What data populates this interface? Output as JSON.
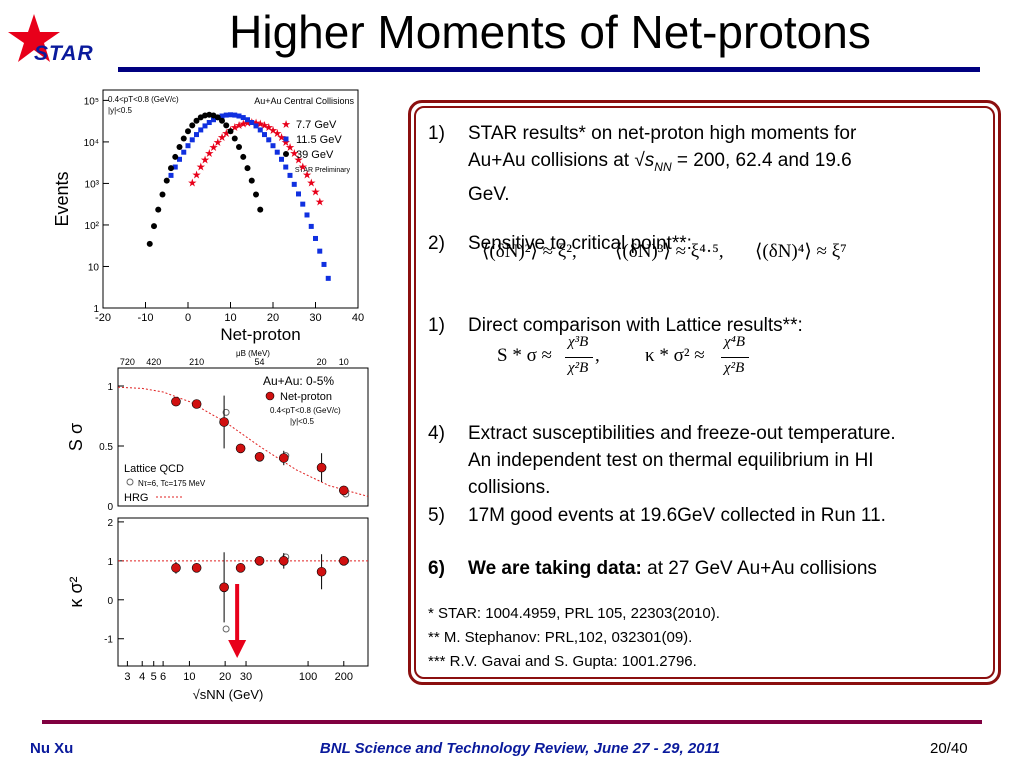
{
  "slide": {
    "title": "Higher Moments of Net-protons",
    "logo_text": "STAR",
    "accent_color": "#000080",
    "panel_border_color": "#8b0f0f"
  },
  "items": [
    {
      "num": "1)",
      "text_a": "STAR results* on net-proton high moments for",
      "text_b_pre": "Au+Au collisions at √",
      "text_b_s": "s",
      "text_b_sub": "NN",
      "text_b_post": " = 200, 62.4 and 19.6",
      "text_c": "GeV."
    },
    {
      "num": "2)",
      "text": "Sensitive to critical point**:"
    },
    {
      "num": "1)",
      "text": "Direct comparison with Lattice results**:"
    },
    {
      "num": "4)",
      "lines": [
        "Extract susceptibilities and freeze-out temperature.",
        "An independent test on thermal equilibrium in HI",
        "collisions."
      ]
    },
    {
      "num": "5)",
      "text": "17M good events at 19.6GeV collected in Run 11."
    },
    {
      "num": "6)",
      "bold": "We are taking data:",
      "text": " at 27 GeV Au+Au collisions"
    }
  ],
  "formulas": {
    "critical": [
      "⟨(δN)²⟩ ≈ ξ²,",
      "⟨(δN)³⟩ ≈ ξ⁴·⁵,",
      "⟨(δN)⁴⟩ ≈ ξ⁷"
    ],
    "lattice_s_lhs": "S * σ ≈",
    "lattice_s_num": "χ³B",
    "lattice_s_den": "χ²B",
    "lattice_s_tail": ",",
    "lattice_k_lhs": "κ * σ² ≈",
    "lattice_k_num": "χ⁴B",
    "lattice_k_den": "χ²B"
  },
  "notes": [
    "*   STAR: 1004.4959,  PRL 105, 22303(2010).",
    "**  M. Stephanov: PRL,102, 032301(09).",
    "*** R.V. Gavai and S. Gupta: 1001.2796."
  ],
  "footer": {
    "author": "Nu Xu",
    "event": "BNL Science and Technology Review, June 27 - 29, 2011",
    "page": "20/40"
  },
  "chart_data": [
    {
      "type": "scatter",
      "title": "Au+Au Central Collisions",
      "cut_labels": [
        "0.4<pT<0.8 (GeV/c)",
        "|y|<0.5"
      ],
      "preliminary": "STAR Preliminary",
      "xlabel": "Net-proton",
      "ylabel": "Events",
      "xlim": [
        -20,
        40
      ],
      "ylim": [
        1,
        100000
      ],
      "yscale": "log",
      "xticks": [
        "-20",
        "-10",
        "0",
        "10",
        "20",
        "30",
        "40"
      ],
      "yticks": [
        "1",
        "10",
        "10²",
        "10³",
        "10⁴",
        "10⁵"
      ],
      "yticks_values": [
        1,
        10,
        100,
        1000,
        10000,
        100000
      ],
      "series": [
        {
          "name": "7.7 GeV",
          "color": "#e8001a",
          "marker": "star",
          "mean": 15,
          "sigma": 5.4,
          "peak": 30000,
          "range": [
            1,
            31
          ]
        },
        {
          "name": "11.5 GeV",
          "color": "#1030e0",
          "marker": "square",
          "mean": 10,
          "sigma": 5.4,
          "peak": 45000,
          "range": [
            -4,
            33
          ]
        },
        {
          "name": "39 GeV",
          "color": "#000000",
          "marker": "circle",
          "mean": 5,
          "sigma": 3.7,
          "peak": 45000,
          "range": [
            -9,
            17
          ]
        }
      ]
    },
    {
      "type": "scatter",
      "top_axis_label": "μB (MeV)",
      "top_ticks": [
        "720",
        "420",
        "210",
        "54",
        "20",
        "10"
      ],
      "top_ticks_sqrt_s": [
        3,
        5,
        11.5,
        39,
        130,
        200
      ],
      "legend": {
        "system": "Au+Au: 0-5%",
        "series": "Net-proton",
        "cuts": [
          "0.4<pT<0.8 (GeV/c)",
          "|y|<0.5"
        ],
        "lattice": "Lattice QCD",
        "lattice_params": "Nτ=6, Tc=175 MeV",
        "hrg": "HRG"
      },
      "xlabel": "√sNN (GeV)",
      "xscale": "log",
      "xlim": [
        2.5,
        320
      ],
      "xticks": [
        "3",
        "4",
        "5",
        "6",
        "10",
        "20",
        "30",
        "100",
        "200"
      ],
      "xticks_values": [
        3,
        4,
        5,
        6,
        10,
        20,
        30,
        100,
        200
      ],
      "top_panel": {
        "ylabel": "S σ",
        "ylim": [
          0,
          1.15
        ],
        "yticks": [
          "0",
          "0.5",
          "1"
        ],
        "x": [
          7.7,
          11.5,
          19.6,
          27,
          39,
          62.4,
          130,
          200
        ],
        "values": [
          0.87,
          0.85,
          0.7,
          0.48,
          0.41,
          0.4,
          0.32,
          0.13
        ],
        "errors": [
          0.03,
          0.03,
          0.22,
          0.03,
          0.03,
          0.06,
          0.12,
          0.03
        ],
        "lattice": {
          "x": [
            19.6,
            62.4,
            200
          ],
          "values": [
            0.78,
            0.42,
            0.1
          ]
        },
        "hrg_curve": {
          "x": [
            2.5,
            4,
            6,
            10,
            20,
            40,
            80,
            150,
            320
          ],
          "values": [
            0.99,
            0.98,
            0.95,
            0.87,
            0.7,
            0.49,
            0.3,
            0.17,
            0.08
          ]
        }
      },
      "bottom_panel": {
        "ylabel": "κ σ²",
        "ylim": [
          -1.7,
          2.1
        ],
        "yticks": [
          "-1",
          "0",
          "1",
          "2"
        ],
        "x": [
          7.7,
          11.5,
          19.6,
          27,
          39,
          62.4,
          130,
          200
        ],
        "values": [
          0.82,
          0.82,
          0.32,
          0.82,
          1.0,
          1.0,
          0.72,
          1.0
        ],
        "errors": [
          0.15,
          0.1,
          0.9,
          0.05,
          0.1,
          0.2,
          0.45,
          0.05
        ],
        "lattice": {
          "x": [
            19.6,
            62.4,
            200
          ],
          "values": [
            -0.75,
            1.1,
            1.0
          ]
        },
        "hrg_level": 1.0
      },
      "marker_color": "#d01010",
      "annotation_arrow_color": "#e8001a"
    }
  ]
}
